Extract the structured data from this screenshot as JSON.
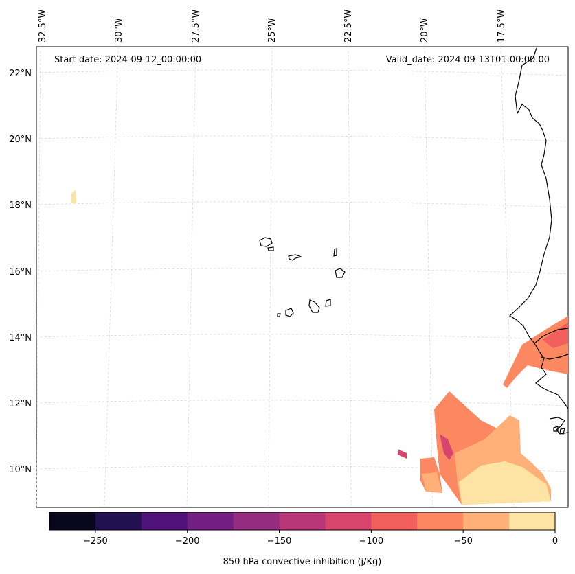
{
  "map": {
    "start_date": "Start date: 2024-09-12_00:00:00",
    "valid_date": "Valid_date: 2024-09-13T01:00:00.00",
    "lon_labels": [
      "32.5°W",
      "30°W",
      "27.5°W",
      "25°W",
      "22.5°W",
      "20°W",
      "17.5°W"
    ],
    "lat_labels": [
      "22°N",
      "20°N",
      "18°N",
      "16°N",
      "14°N",
      "12°N",
      "10°N"
    ],
    "field": "850 hPa convective inhibition",
    "extent": {
      "lon_min": -33.5,
      "lon_max": -16.0,
      "lat_min": 8.9,
      "lat_max": 22.8
    }
  },
  "colorbar": {
    "label": "850 hPa convective inhibition (j/Kg)",
    "levels": [
      -275,
      -250,
      -225,
      -200,
      -175,
      -150,
      -125,
      -100,
      -75,
      -50,
      -25,
      0
    ],
    "tick_labels": [
      "−250",
      "−200",
      "−150",
      "−100",
      "−50",
      "0"
    ],
    "tick_values": [
      -250,
      -200,
      -150,
      -100,
      -50,
      0
    ],
    "colors": [
      "#07061c",
      "#221150",
      "#4f127b",
      "#721f81",
      "#952c80",
      "#b73779",
      "#d8456c",
      "#f1605d",
      "#fb8861",
      "#feb078",
      "#fde4a4"
    ]
  }
}
